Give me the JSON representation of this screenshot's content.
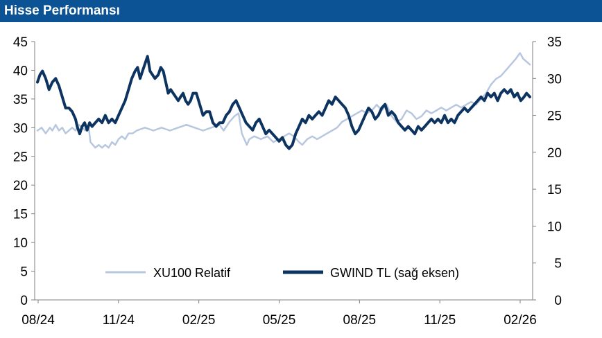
{
  "header": {
    "title": "Hisse Performansı"
  },
  "chart_data": {
    "type": "line",
    "x_ticks": [
      "08/24",
      "11/24",
      "02/25",
      "05/25",
      "08/25",
      "11/25",
      "02/26"
    ],
    "left_axis": {
      "ticks": [
        "45",
        "40",
        "35",
        "30",
        "25",
        "20",
        "15",
        "10",
        "5",
        "0"
      ],
      "range": [
        0,
        45
      ]
    },
    "right_axis": {
      "ticks": [
        "35",
        "30",
        "25",
        "20",
        "15",
        "10",
        "5",
        "0"
      ],
      "range": [
        0,
        35
      ]
    },
    "grid": false,
    "legend_position": "bottom-center",
    "series": [
      {
        "name": "XU100 Relatif",
        "axis": "left",
        "color": "#b8c7e0",
        "points": [
          [
            0,
            29.5
          ],
          [
            5,
            30
          ],
          [
            10,
            29
          ],
          [
            15,
            30
          ],
          [
            18,
            29.5
          ],
          [
            22,
            30.5
          ],
          [
            26,
            29.5
          ],
          [
            30,
            30
          ],
          [
            34,
            29
          ],
          [
            38,
            29.5
          ],
          [
            42,
            30
          ],
          [
            46,
            29.5
          ],
          [
            50,
            30.5
          ],
          [
            54,
            30
          ],
          [
            58,
            29.5
          ],
          [
            62,
            30
          ],
          [
            64,
            27.5
          ],
          [
            67,
            27
          ],
          [
            70,
            26.5
          ],
          [
            74,
            27
          ],
          [
            78,
            26.5
          ],
          [
            82,
            27
          ],
          [
            86,
            26.5
          ],
          [
            90,
            27.5
          ],
          [
            94,
            27
          ],
          [
            98,
            28
          ],
          [
            102,
            28.5
          ],
          [
            106,
            28
          ],
          [
            110,
            29
          ],
          [
            115,
            29
          ],
          [
            120,
            29.5
          ],
          [
            130,
            30
          ],
          [
            140,
            29.5
          ],
          [
            150,
            30
          ],
          [
            160,
            29.5
          ],
          [
            170,
            30
          ],
          [
            180,
            30.5
          ],
          [
            190,
            30
          ],
          [
            200,
            29.5
          ],
          [
            210,
            30
          ],
          [
            220,
            30.5
          ],
          [
            225,
            29.5
          ],
          [
            232,
            31
          ],
          [
            238,
            32
          ],
          [
            243,
            32.5
          ],
          [
            247,
            29
          ],
          [
            250,
            28
          ],
          [
            253,
            27
          ],
          [
            256,
            28
          ],
          [
            262,
            28.5
          ],
          [
            270,
            28
          ],
          [
            278,
            28.5
          ],
          [
            285,
            27.5
          ],
          [
            292,
            28
          ],
          [
            298,
            28.5
          ],
          [
            304,
            29
          ],
          [
            310,
            28.5
          ],
          [
            316,
            27.5
          ],
          [
            320,
            27
          ],
          [
            326,
            28
          ],
          [
            332,
            28.5
          ],
          [
            338,
            28
          ],
          [
            344,
            28.5
          ],
          [
            350,
            29
          ],
          [
            356,
            29.5
          ],
          [
            362,
            30
          ],
          [
            368,
            31
          ],
          [
            374,
            31.5
          ],
          [
            380,
            32
          ],
          [
            386,
            32.5
          ],
          [
            392,
            33
          ],
          [
            398,
            32.5
          ],
          [
            404,
            33
          ],
          [
            410,
            34
          ],
          [
            416,
            33
          ],
          [
            422,
            34
          ],
          [
            428,
            32
          ],
          [
            434,
            31
          ],
          [
            440,
            31.5
          ],
          [
            446,
            33
          ],
          [
            452,
            32.5
          ],
          [
            458,
            31.5
          ],
          [
            464,
            32
          ],
          [
            470,
            33
          ],
          [
            476,
            32.5
          ],
          [
            482,
            33
          ],
          [
            488,
            33.5
          ],
          [
            494,
            33
          ],
          [
            500,
            33.5
          ],
          [
            506,
            34
          ],
          [
            512,
            33.5
          ],
          [
            518,
            34
          ],
          [
            524,
            34.5
          ],
          [
            530,
            34
          ],
          [
            536,
            35
          ],
          [
            542,
            36
          ],
          [
            548,
            37.5
          ],
          [
            554,
            38.5
          ],
          [
            560,
            39
          ],
          [
            566,
            40
          ],
          [
            572,
            41
          ],
          [
            578,
            42
          ],
          [
            583,
            43
          ],
          [
            587,
            42
          ],
          [
            591,
            41.5
          ],
          [
            595,
            41
          ]
        ]
      },
      {
        "name": "GWIND TL (sağ eksen)",
        "axis": "right",
        "color": "#0d3460",
        "points": [
          [
            0,
            29.5
          ],
          [
            3,
            30.5
          ],
          [
            6,
            31
          ],
          [
            10,
            30
          ],
          [
            14,
            28.5
          ],
          [
            18,
            29.5
          ],
          [
            22,
            30
          ],
          [
            26,
            29
          ],
          [
            30,
            27.5
          ],
          [
            34,
            26
          ],
          [
            38,
            26
          ],
          [
            42,
            25.5
          ],
          [
            46,
            24.5
          ],
          [
            48,
            23.5
          ],
          [
            51,
            22.5
          ],
          [
            54,
            23.5
          ],
          [
            57,
            24
          ],
          [
            60,
            23
          ],
          [
            63,
            24
          ],
          [
            66,
            23.5
          ],
          [
            70,
            24
          ],
          [
            74,
            24.5
          ],
          [
            78,
            24
          ],
          [
            82,
            25
          ],
          [
            86,
            24
          ],
          [
            90,
            24.5
          ],
          [
            94,
            24
          ],
          [
            98,
            25
          ],
          [
            102,
            26
          ],
          [
            106,
            27
          ],
          [
            110,
            28.5
          ],
          [
            114,
            30
          ],
          [
            118,
            31
          ],
          [
            121,
            31.5
          ],
          [
            124,
            30
          ],
          [
            127,
            31
          ],
          [
            130,
            32
          ],
          [
            133,
            33
          ],
          [
            136,
            31
          ],
          [
            139,
            30.5
          ],
          [
            142,
            30
          ],
          [
            146,
            30.5
          ],
          [
            149,
            31.5
          ],
          [
            152,
            31
          ],
          [
            155,
            29.5
          ],
          [
            158,
            28
          ],
          [
            161,
            28.5
          ],
          [
            164,
            28
          ],
          [
            167,
            27.5
          ],
          [
            170,
            27
          ],
          [
            173,
            27.5
          ],
          [
            176,
            28
          ],
          [
            179,
            27
          ],
          [
            182,
            26.5
          ],
          [
            185,
            27
          ],
          [
            188,
            28
          ],
          [
            192,
            28
          ],
          [
            196,
            26.5
          ],
          [
            200,
            25
          ],
          [
            204,
            25.5
          ],
          [
            208,
            25.5
          ],
          [
            212,
            24
          ],
          [
            216,
            23.5
          ],
          [
            220,
            24
          ],
          [
            224,
            24
          ],
          [
            228,
            25
          ],
          [
            232,
            25.5
          ],
          [
            236,
            26.5
          ],
          [
            240,
            27
          ],
          [
            244,
            26
          ],
          [
            248,
            25
          ],
          [
            252,
            24
          ],
          [
            256,
            23.5
          ],
          [
            260,
            23
          ],
          [
            264,
            24
          ],
          [
            268,
            24.5
          ],
          [
            272,
            23.5
          ],
          [
            276,
            22.5
          ],
          [
            280,
            23
          ],
          [
            284,
            22.5
          ],
          [
            288,
            22
          ],
          [
            292,
            21.5
          ],
          [
            296,
            22
          ],
          [
            300,
            21
          ],
          [
            304,
            20.5
          ],
          [
            308,
            21
          ],
          [
            312,
            22.5
          ],
          [
            316,
            23.5
          ],
          [
            320,
            24.5
          ],
          [
            324,
            24
          ],
          [
            328,
            25
          ],
          [
            332,
            24.5
          ],
          [
            336,
            25
          ],
          [
            340,
            25.5
          ],
          [
            344,
            25
          ],
          [
            348,
            26
          ],
          [
            352,
            27
          ],
          [
            356,
            26.5
          ],
          [
            360,
            27.5
          ],
          [
            364,
            27
          ],
          [
            368,
            26.5
          ],
          [
            372,
            26
          ],
          [
            376,
            25
          ],
          [
            380,
            23.5
          ],
          [
            384,
            22.5
          ],
          [
            388,
            23
          ],
          [
            392,
            24
          ],
          [
            396,
            25
          ],
          [
            400,
            26
          ],
          [
            404,
            25.5
          ],
          [
            408,
            24.5
          ],
          [
            412,
            25
          ],
          [
            416,
            26
          ],
          [
            420,
            26.5
          ],
          [
            424,
            25
          ],
          [
            428,
            25.5
          ],
          [
            432,
            25
          ],
          [
            436,
            24
          ],
          [
            440,
            23.5
          ],
          [
            444,
            23
          ],
          [
            448,
            23.5
          ],
          [
            452,
            23
          ],
          [
            456,
            22.5
          ],
          [
            460,
            23.5
          ],
          [
            464,
            23
          ],
          [
            468,
            23.5
          ],
          [
            472,
            24
          ],
          [
            476,
            24.5
          ],
          [
            480,
            24
          ],
          [
            484,
            24.5
          ],
          [
            488,
            24
          ],
          [
            492,
            25
          ],
          [
            496,
            24
          ],
          [
            500,
            24.5
          ],
          [
            504,
            24
          ],
          [
            508,
            25
          ],
          [
            512,
            25.5
          ],
          [
            516,
            26
          ],
          [
            520,
            25.5
          ],
          [
            524,
            26
          ],
          [
            528,
            26.5
          ],
          [
            532,
            27
          ],
          [
            536,
            27.5
          ],
          [
            540,
            27
          ],
          [
            544,
            28
          ],
          [
            548,
            27.5
          ],
          [
            552,
            28
          ],
          [
            556,
            27
          ],
          [
            560,
            28
          ],
          [
            564,
            28.5
          ],
          [
            568,
            28
          ],
          [
            572,
            28.5
          ],
          [
            576,
            27.5
          ],
          [
            580,
            28
          ],
          [
            584,
            27
          ],
          [
            588,
            27.5
          ],
          [
            591,
            28
          ],
          [
            595,
            27.5
          ]
        ]
      }
    ]
  }
}
